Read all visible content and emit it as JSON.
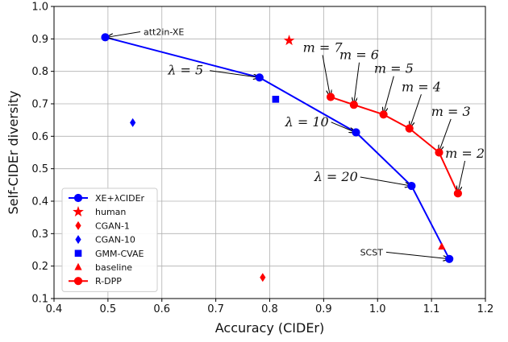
{
  "chart_data": {
    "type": "scatter",
    "title": "",
    "xlabel": "Accuracy (CIDEr)",
    "ylabel": "Self-CIDEr diversity",
    "xlim": [
      0.4,
      1.2
    ],
    "ylim": [
      0.1,
      1.0
    ],
    "xticks": [
      "0.4",
      "0.5",
      "0.6",
      "0.7",
      "0.8",
      "0.9",
      "1.0",
      "1.1",
      "1.2"
    ],
    "yticks": [
      "0.1",
      "0.2",
      "0.3",
      "0.4",
      "0.5",
      "0.6",
      "0.7",
      "0.8",
      "0.9",
      "1.0"
    ],
    "grid": true,
    "legend_position": "lower-left",
    "series": [
      {
        "name": "XE+λCIDEr",
        "color": "#0000ff",
        "marker": "circle",
        "line": true,
        "x": [
          0.495,
          0.781,
          0.96,
          1.063,
          1.133
        ],
        "y": [
          0.905,
          0.781,
          0.612,
          0.447,
          0.222
        ]
      },
      {
        "name": "human",
        "color": "#ff0000",
        "marker": "star",
        "line": false,
        "x": [
          0.836
        ],
        "y": [
          0.895
        ]
      },
      {
        "name": "CGAN-1",
        "color": "#ff0000",
        "marker": "thin-diamond",
        "line": false,
        "x": [
          0.787
        ],
        "y": [
          0.165
        ]
      },
      {
        "name": "CGAN-10",
        "color": "#0000ff",
        "marker": "thin-diamond",
        "line": false,
        "x": [
          0.546
        ],
        "y": [
          0.642
        ]
      },
      {
        "name": "GMM-CVAE",
        "color": "#0000ff",
        "marker": "square",
        "line": false,
        "x": [
          0.811
        ],
        "y": [
          0.714
        ]
      },
      {
        "name": "baseline",
        "color": "#ff0000",
        "marker": "triangle",
        "line": false,
        "x": [
          1.119
        ],
        "y": [
          0.26
        ]
      },
      {
        "name": "R-DPP",
        "color": "#ff0000",
        "marker": "circle",
        "line": true,
        "x": [
          0.913,
          0.956,
          1.011,
          1.059,
          1.114,
          1.149
        ],
        "y": [
          0.721,
          0.697,
          0.667,
          0.624,
          0.55,
          0.424
        ]
      }
    ],
    "annotations": [
      {
        "text": "att2in-XE",
        "style": "sans",
        "tx": 0.566,
        "ty": 0.912,
        "px": 0.498,
        "py": 0.905,
        "anchor": "start"
      },
      {
        "text": "λ = 5",
        "style": "serif",
        "tx": 0.644,
        "ty": 0.79,
        "px": 0.781,
        "py": 0.781,
        "anchor": "middle"
      },
      {
        "text": "λ = 10",
        "style": "serif",
        "tx": 0.869,
        "ty": 0.631,
        "px": 0.959,
        "py": 0.612,
        "anchor": "middle"
      },
      {
        "text": "λ = 20",
        "style": "serif",
        "tx": 0.923,
        "ty": 0.462,
        "px": 1.062,
        "py": 0.447,
        "anchor": "middle"
      },
      {
        "text": "SCST",
        "style": "sans",
        "tx": 1.01,
        "ty": 0.233,
        "px": 1.133,
        "py": 0.222,
        "anchor": "end"
      },
      {
        "text": "m = 7",
        "style": "serif",
        "tx": 0.898,
        "ty": 0.86,
        "px": 0.912,
        "py": 0.723,
        "anchor": "middle"
      },
      {
        "text": "m = 6",
        "style": "serif",
        "tx": 0.966,
        "ty": 0.837,
        "px": 0.956,
        "py": 0.7,
        "anchor": "middle"
      },
      {
        "text": "m = 5",
        "style": "serif",
        "tx": 1.03,
        "ty": 0.795,
        "px": 1.011,
        "py": 0.67,
        "anchor": "middle"
      },
      {
        "text": "m = 4",
        "style": "serif",
        "tx": 1.081,
        "ty": 0.739,
        "px": 1.06,
        "py": 0.627,
        "anchor": "middle"
      },
      {
        "text": "m = 3",
        "style": "serif",
        "tx": 1.136,
        "ty": 0.663,
        "px": 1.114,
        "py": 0.553,
        "anchor": "middle"
      },
      {
        "text": "m = 2",
        "style": "serif",
        "tx": 1.162,
        "ty": 0.534,
        "px": 1.149,
        "py": 0.427,
        "anchor": "middle"
      }
    ]
  }
}
